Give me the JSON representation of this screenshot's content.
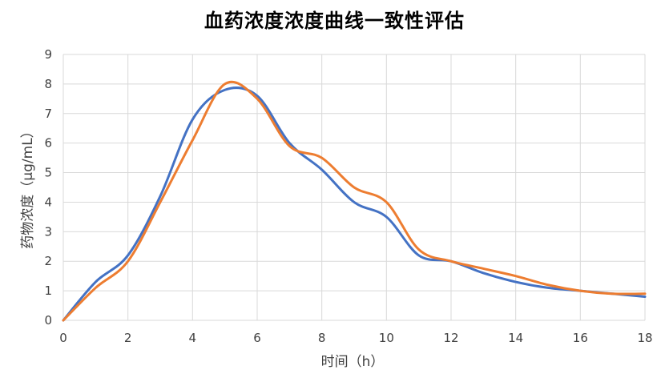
{
  "chart_data": {
    "type": "line",
    "title": "血药浓度浓度曲线一致性评估",
    "xlabel": "时间（h）",
    "ylabel": "药物浓度（μg/mL）",
    "xlim": [
      0,
      18
    ],
    "ylim": [
      0,
      9
    ],
    "x_ticks": [
      0,
      2,
      4,
      6,
      8,
      10,
      12,
      14,
      16,
      18
    ],
    "y_ticks": [
      0,
      1,
      2,
      3,
      4,
      5,
      6,
      7,
      8,
      9
    ],
    "grid": true,
    "legend": "none",
    "smooth": true,
    "series": [
      {
        "color": "#4472C4",
        "x": [
          0,
          1,
          2,
          3,
          4,
          5,
          6,
          7,
          8,
          9,
          10,
          11,
          12,
          13,
          14,
          15,
          16,
          17,
          18
        ],
        "y": [
          0,
          1.3,
          2.2,
          4.2,
          6.8,
          7.8,
          7.6,
          6.0,
          5.1,
          4.0,
          3.5,
          2.2,
          2.0,
          1.6,
          1.3,
          1.1,
          1.0,
          0.9,
          0.8
        ]
      },
      {
        "color": "#ED7D31",
        "x": [
          0,
          1,
          2,
          3,
          4,
          5,
          6,
          7,
          8,
          9,
          10,
          11,
          12,
          13,
          14,
          15,
          16,
          17,
          18
        ],
        "y": [
          0,
          1.1,
          2.0,
          4.0,
          6.1,
          8.0,
          7.5,
          5.9,
          5.5,
          4.5,
          4.0,
          2.4,
          2.0,
          1.75,
          1.5,
          1.2,
          1.0,
          0.9,
          0.9
        ]
      }
    ]
  }
}
